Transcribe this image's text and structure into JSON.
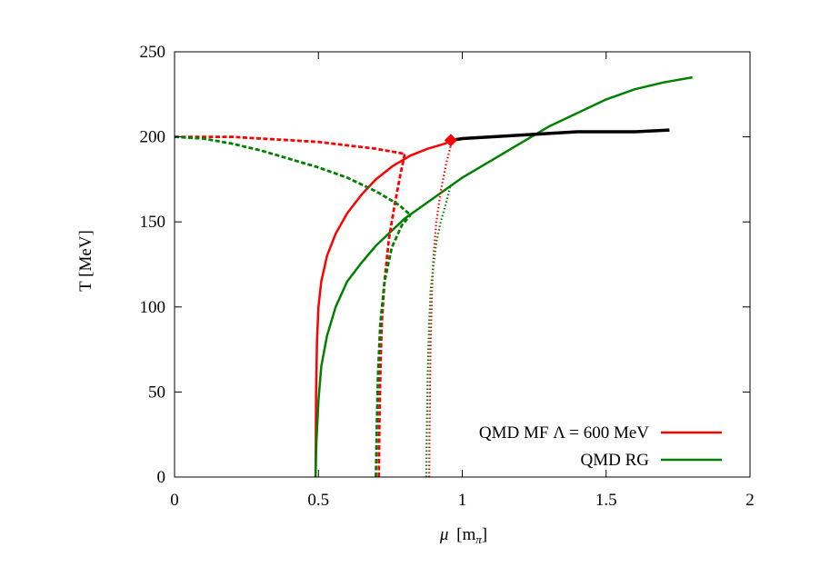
{
  "chart_data": {
    "type": "line",
    "xlabel_main": "μ",
    "xlabel_unit_open": "[m",
    "xlabel_unit_sub": "π",
    "xlabel_unit_close": "]",
    "ylabel": "T [MeV]",
    "xlim": [
      0,
      2
    ],
    "ylim": [
      0,
      250
    ],
    "x_ticks": [
      {
        "value": 0,
        "label": "0"
      },
      {
        "value": 0.5,
        "label": "0.5"
      },
      {
        "value": 1,
        "label": "1"
      },
      {
        "value": 1.5,
        "label": "1.5"
      },
      {
        "value": 2,
        "label": "2"
      }
    ],
    "y_ticks": [
      {
        "value": 0,
        "label": "0"
      },
      {
        "value": 50,
        "label": "50"
      },
      {
        "value": 100,
        "label": "100"
      },
      {
        "value": 150,
        "label": "150"
      },
      {
        "value": 200,
        "label": "200"
      },
      {
        "value": 250,
        "label": "250"
      }
    ],
    "grid": false,
    "legend_position": "bottom-right",
    "series": [
      {
        "name": "QMD MF Λ = 600 MeV",
        "color": "#ff0000",
        "style": "solid",
        "in_legend": true,
        "x": [
          0.49,
          0.492,
          0.495,
          0.5,
          0.51,
          0.53,
          0.56,
          0.6,
          0.65,
          0.7,
          0.76,
          0.82,
          0.88,
          0.94,
          0.965
        ],
        "y": [
          0,
          50,
          80,
          100,
          115,
          130,
          143,
          155,
          166,
          175,
          183,
          189,
          193,
          196,
          198
        ]
      },
      {
        "name": "QMD RG",
        "color": "#008000",
        "style": "solid",
        "in_legend": true,
        "x": [
          0.49,
          0.493,
          0.5,
          0.51,
          0.53,
          0.56,
          0.6,
          0.65,
          0.7,
          0.75,
          0.8,
          0.9,
          1.0,
          1.1,
          1.2,
          1.3,
          1.4,
          1.5,
          1.6,
          1.7,
          1.8
        ],
        "y": [
          0,
          20,
          45,
          65,
          83,
          100,
          115,
          126,
          136,
          144,
          152,
          164,
          176,
          186,
          196,
          206,
          214,
          222,
          228,
          232,
          235
        ]
      },
      {
        "color": "#000000",
        "style": "solid-thick",
        "in_legend": false,
        "x": [
          0.965,
          1.0,
          1.1,
          1.2,
          1.3,
          1.4,
          1.5,
          1.6,
          1.72
        ],
        "y": [
          198,
          199,
          200,
          201,
          202,
          203,
          203,
          203,
          204
        ]
      },
      {
        "color": "#ff0000",
        "style": "dashed",
        "in_legend": false,
        "x": [
          0,
          0.1,
          0.2,
          0.3,
          0.4,
          0.5,
          0.6,
          0.7,
          0.8
        ],
        "y": [
          200,
          200,
          200,
          199,
          198,
          197,
          195,
          193,
          190
        ]
      },
      {
        "color": "#ff0000",
        "style": "dashed",
        "in_legend": false,
        "x": [
          0.71,
          0.712,
          0.715,
          0.72,
          0.73,
          0.745,
          0.765,
          0.785,
          0.8
        ],
        "y": [
          0,
          30,
          60,
          90,
          115,
          140,
          160,
          178,
          190
        ]
      },
      {
        "color": "#008000",
        "style": "dashed",
        "in_legend": false,
        "x": [
          0,
          0.1,
          0.2,
          0.3,
          0.4,
          0.5,
          0.6,
          0.7,
          0.78,
          0.82
        ],
        "y": [
          200,
          199,
          196,
          192,
          187,
          182,
          176,
          168,
          160,
          154
        ]
      },
      {
        "color": "#008000",
        "style": "dashed",
        "in_legend": false,
        "x": [
          0.7,
          0.703,
          0.707,
          0.715,
          0.73,
          0.755,
          0.79,
          0.82
        ],
        "y": [
          0,
          30,
          60,
          90,
          115,
          135,
          148,
          154
        ]
      },
      {
        "color": "#ff0000",
        "style": "dotted",
        "in_legend": false,
        "x": [
          0.885,
          0.887,
          0.89,
          0.895,
          0.9,
          0.91,
          0.925,
          0.945,
          0.965
        ],
        "y": [
          0,
          40,
          80,
          110,
          130,
          150,
          168,
          185,
          198
        ]
      },
      {
        "color": "#008000",
        "style": "dotted",
        "in_legend": false,
        "x": [
          0.875,
          0.877,
          0.88,
          0.885,
          0.89,
          0.9,
          0.91,
          0.925,
          0.945,
          0.96
        ],
        "y": [
          0,
          30,
          60,
          90,
          110,
          125,
          138,
          150,
          162,
          172
        ]
      }
    ],
    "markers": [
      {
        "type": "diamond",
        "color": "#ff0000",
        "x": 0.96,
        "y": 198
      }
    ]
  }
}
